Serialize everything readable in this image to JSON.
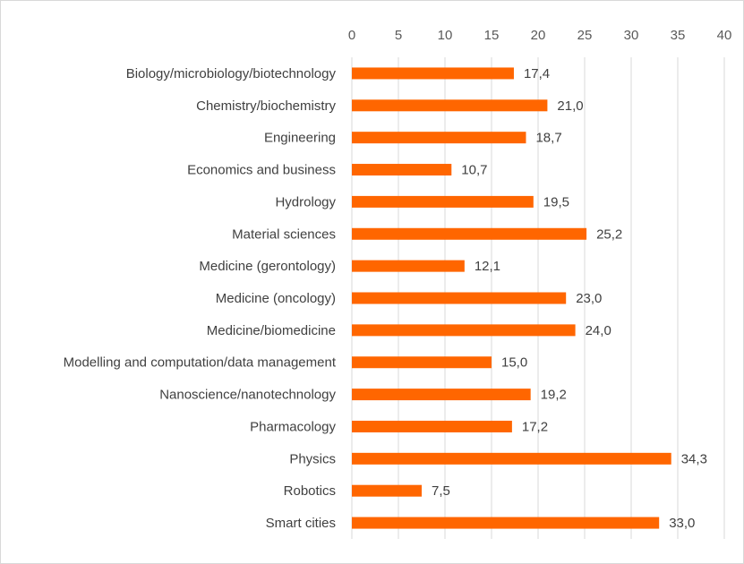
{
  "chart_data": {
    "type": "bar",
    "orientation": "horizontal",
    "xlim": [
      0,
      40
    ],
    "x_ticks": [
      0,
      5,
      10,
      15,
      20,
      25,
      30,
      35,
      40
    ],
    "x_tick_labels": [
      "0",
      "5",
      "10",
      "15",
      "20",
      "25",
      "30",
      "35",
      "40"
    ],
    "axis_position": "top",
    "grid": true,
    "bar_color": "#FF6600",
    "categories": [
      "Biology/microbiology/biotechnology",
      "Chemistry/biochemistry",
      "Engineering",
      "Economics and business",
      "Hydrology",
      "Material sciences",
      "Medicine (gerontology)",
      "Medicine (oncology)",
      "Medicine/biomedicine",
      "Modelling and computation/data management",
      "Nanoscience/nanotechnology",
      "Pharmacology",
      "Physics",
      "Robotics",
      "Smart cities"
    ],
    "values": [
      17.4,
      21.0,
      18.7,
      10.7,
      19.5,
      25.2,
      12.1,
      23.0,
      24.0,
      15.0,
      19.2,
      17.2,
      34.3,
      7.5,
      33.0
    ],
    "value_labels": [
      "17,4",
      "21,0",
      "18,7",
      "10,7",
      "19,5",
      "25,2",
      "12,1",
      "23,0",
      "24,0",
      "15,0",
      "19,2",
      "17,2",
      "34,3",
      "7,5",
      "33,0"
    ]
  }
}
